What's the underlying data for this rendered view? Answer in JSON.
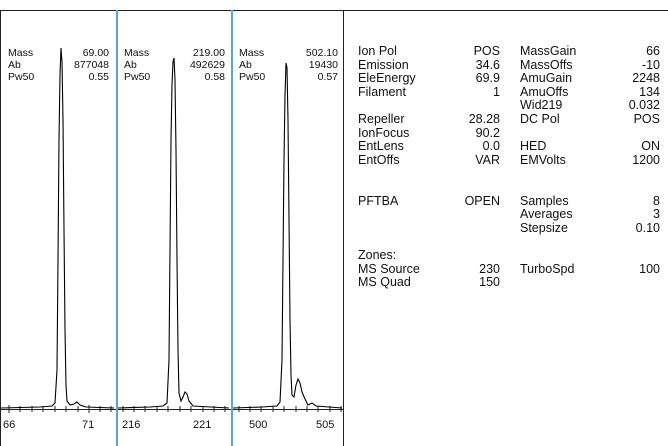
{
  "panels": [
    {
      "mass_label": "Mass",
      "mass": "69.00",
      "ab_label": "Ab",
      "ab": "877048",
      "pw_label": "Pw50",
      "pw": "0.55",
      "tick_left": "66",
      "tick_right": "71"
    },
    {
      "mass_label": "Mass",
      "mass": "219.00",
      "ab_label": "Ab",
      "ab": "492629",
      "pw_label": "Pw50",
      "pw": "0.58",
      "tick_left": "216",
      "tick_right": "221"
    },
    {
      "mass_label": "Mass",
      "mass": "502.10",
      "ab_label": "Ab",
      "ab": "19430",
      "pw_label": "Pw50",
      "pw": "0.57",
      "tick_left": "500",
      "tick_right": "505"
    }
  ],
  "tune_left": [
    {
      "k": "Ion Pol",
      "v": "POS"
    },
    {
      "k": "Emission",
      "v": "34.6"
    },
    {
      "k": "EleEnergy",
      "v": "69.9"
    },
    {
      "k": "Filament",
      "v": "1"
    },
    {
      "k": "",
      "v": ""
    },
    {
      "k": "Repeller",
      "v": "28.28"
    },
    {
      "k": "IonFocus",
      "v": "90.2"
    },
    {
      "k": "EntLens",
      "v": "0.0"
    },
    {
      "k": "EntOffs",
      "v": "VAR"
    },
    {
      "k": "",
      "v": ""
    },
    {
      "k": "",
      "v": ""
    },
    {
      "k": "PFTBA",
      "v": "OPEN"
    },
    {
      "k": "",
      "v": ""
    },
    {
      "k": "",
      "v": ""
    },
    {
      "k": "",
      "v": ""
    },
    {
      "k": "Zones:",
      "v": ""
    },
    {
      "k": "MS Source",
      "v": "230"
    },
    {
      "k": "MS Quad",
      "v": "150"
    }
  ],
  "tune_right": [
    {
      "k": "MassGain",
      "v": "66"
    },
    {
      "k": "MassOffs",
      "v": "-10"
    },
    {
      "k": "AmuGain",
      "v": "2248"
    },
    {
      "k": "AmuOffs",
      "v": "134"
    },
    {
      "k": "Wid219",
      "v": "0.032"
    },
    {
      "k": "DC Pol",
      "v": "POS"
    },
    {
      "k": "",
      "v": ""
    },
    {
      "k": "HED",
      "v": "ON"
    },
    {
      "k": "EMVolts",
      "v": "1200"
    },
    {
      "k": "",
      "v": ""
    },
    {
      "k": "",
      "v": ""
    },
    {
      "k": "Samples",
      "v": "8"
    },
    {
      "k": "Averages",
      "v": "3"
    },
    {
      "k": "Stepsize",
      "v": "0.10"
    },
    {
      "k": "",
      "v": ""
    },
    {
      "k": "",
      "v": ""
    },
    {
      "k": "TurboSpd",
      "v": "100"
    },
    {
      "k": "",
      "v": ""
    }
  ],
  "colors": {
    "separator": "#5aa5d8",
    "trace": "#000000",
    "frame": "#222222"
  }
}
